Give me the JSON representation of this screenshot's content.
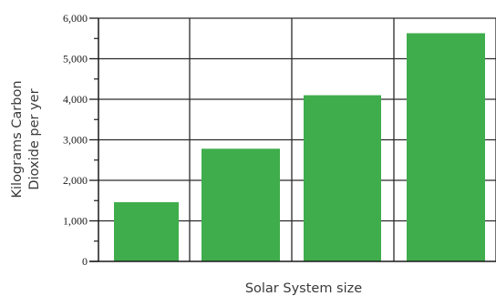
{
  "chart_data": {
    "type": "bar",
    "categories": [
      "",
      "",
      "",
      ""
    ],
    "values": [
      1460,
      2780,
      4100,
      5630
    ],
    "xlabel": "Solar System size",
    "ylabel_lines": [
      "Kilograms Carbon",
      "Dioxide per yer"
    ],
    "ylim": [
      0,
      6000
    ],
    "yticks": [
      {
        "value": 0,
        "label": "0"
      },
      {
        "value": 1000,
        "label": "1,000"
      },
      {
        "value": 2000,
        "label": "2,000"
      },
      {
        "value": 3000,
        "label": "3,000"
      },
      {
        "value": 4000,
        "label": "4,000"
      },
      {
        "value": 5000,
        "label": "5,000"
      },
      {
        "value": 6000,
        "label": "6,000"
      }
    ],
    "grid": true,
    "colors": {
      "bar": "#3fad4c",
      "grid": "#2a2a2a",
      "axis": "#1a1a1a"
    }
  }
}
